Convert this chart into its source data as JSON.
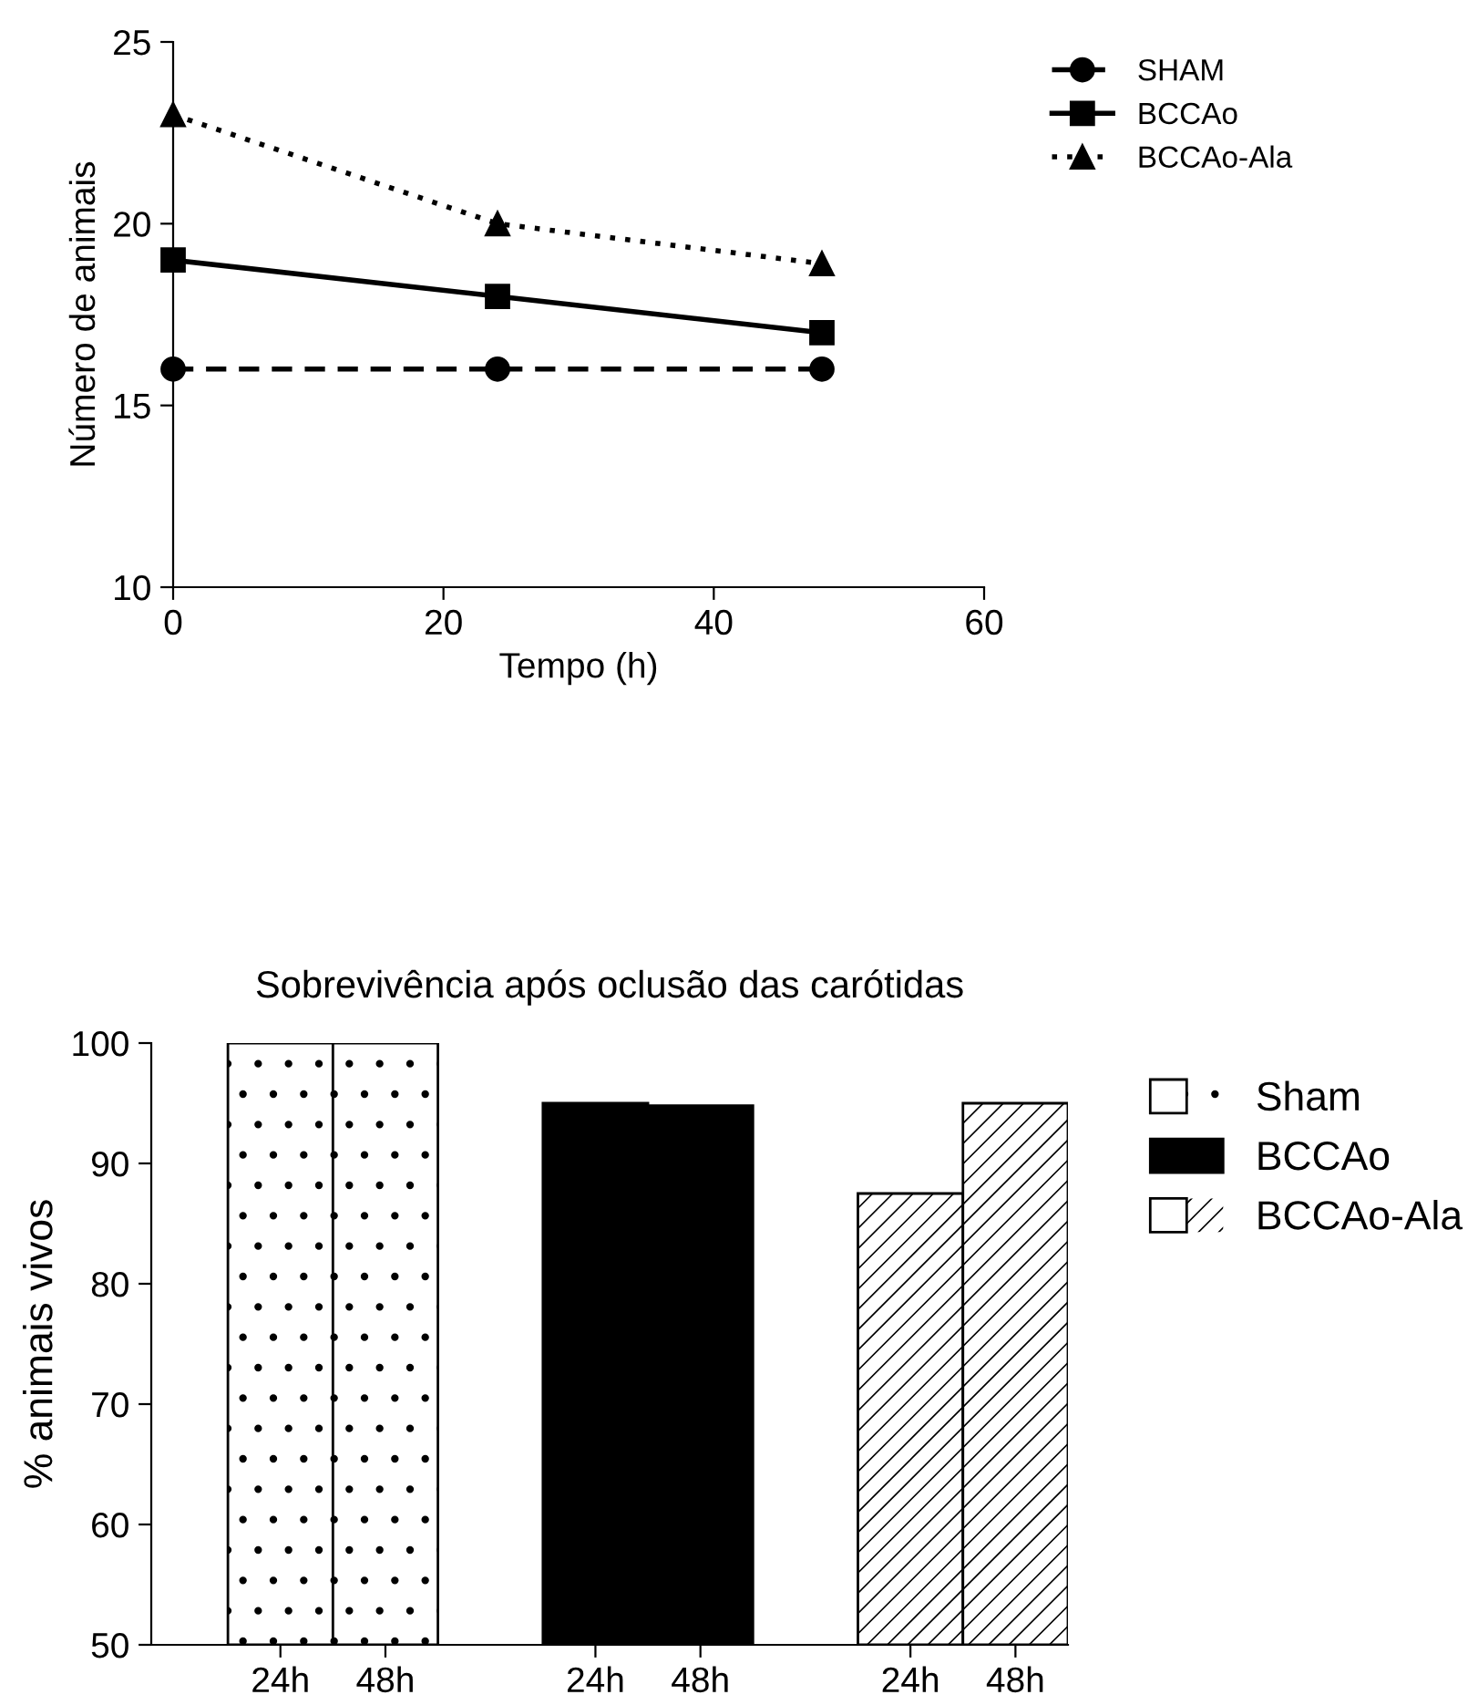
{
  "chart_data": [
    {
      "type": "line",
      "xlabel": "Tempo (h)",
      "ylabel": "Número de animais",
      "x": [
        0,
        24,
        48
      ],
      "series": [
        {
          "name": "SHAM",
          "color": "#000000",
          "values": [
            16,
            16,
            16
          ],
          "marker": "circle",
          "line_style": "dashed"
        },
        {
          "name": "BCCAo",
          "color": "#000000",
          "values": [
            19,
            18,
            17
          ],
          "marker": "square",
          "line_style": "solid"
        },
        {
          "name": "BCCAo-Ala",
          "color": "#000000",
          "values": [
            23,
            20,
            18.9
          ],
          "marker": "triangle",
          "line_style": "dotted"
        }
      ],
      "xlim": [
        0,
        60
      ],
      "ylim": [
        10,
        25
      ],
      "xticks": [
        0,
        20,
        40,
        60
      ],
      "yticks": [
        10,
        15,
        20,
        25
      ],
      "grid": false,
      "legend": "top right"
    },
    {
      "type": "bar",
      "title": "Sobrevivência após oclusão das carótidas",
      "ylabel": "% animais vivos",
      "categories": [
        "24h",
        "48h",
        null,
        "24h",
        "48h",
        null,
        "24h",
        "48h"
      ],
      "series": [
        {
          "name": "Sham",
          "color": "#ffffff",
          "values": [
            100,
            100,
            null,
            null,
            null,
            null,
            null,
            null
          ]
        },
        {
          "name": "BCCAo",
          "color": "#000000",
          "values": [
            null,
            null,
            null,
            95,
            94.8,
            null,
            null,
            null
          ]
        },
        {
          "name": "BCCAo-Ala",
          "color": "#ffffff",
          "values": [
            null,
            null,
            null,
            null,
            null,
            null,
            87.5,
            95
          ]
        }
      ],
      "ylim": [
        50,
        100
      ],
      "yticks": [
        50,
        60,
        70,
        80,
        90,
        100
      ],
      "grid": false,
      "legend": "right"
    }
  ]
}
